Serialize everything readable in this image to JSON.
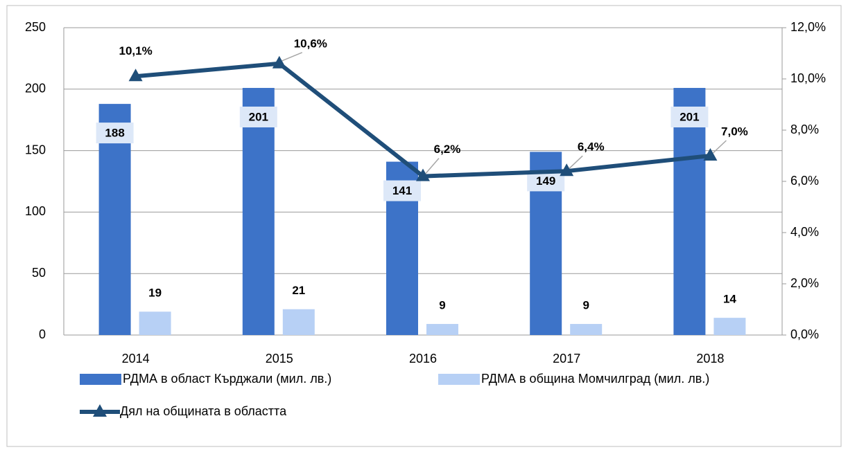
{
  "chart_data": {
    "type": "bar",
    "categories": [
      "2014",
      "2015",
      "2016",
      "2017",
      "2018"
    ],
    "series": [
      {
        "name": "РДМА в област Кърджали (мил. лв.)",
        "color": "#3d73c8",
        "values": [
          188,
          201,
          141,
          149,
          201
        ]
      },
      {
        "name": "РДМА в община Момчилград (мил. лв.)",
        "color": "#b7d0f5",
        "values": [
          19,
          21,
          9,
          9,
          14
        ]
      },
      {
        "name": "Дял на общината в областта",
        "type": "line",
        "axis": "y2",
        "color": "#1f4e79",
        "values": [
          10.1,
          10.6,
          6.2,
          6.4,
          7.0
        ],
        "value_labels": [
          "10,1%",
          "10,6%",
          "6,2%",
          "6,4%",
          "7,0%"
        ]
      }
    ],
    "ylim": [
      0,
      250
    ],
    "yticks": [
      0,
      50,
      100,
      150,
      200,
      250
    ],
    "y2lim": [
      0,
      12
    ],
    "y2ticks": [
      {
        "value": 0,
        "label": "0,0%"
      },
      {
        "value": 2,
        "label": "2,0%"
      },
      {
        "value": 4,
        "label": "4,0%"
      },
      {
        "value": 6,
        "label": "6,0%"
      },
      {
        "value": 8,
        "label": "8,0%"
      },
      {
        "value": 10,
        "label": "10,0%"
      },
      {
        "value": 12,
        "label": "12,0%"
      }
    ],
    "grid": true,
    "legend": "bottom"
  }
}
